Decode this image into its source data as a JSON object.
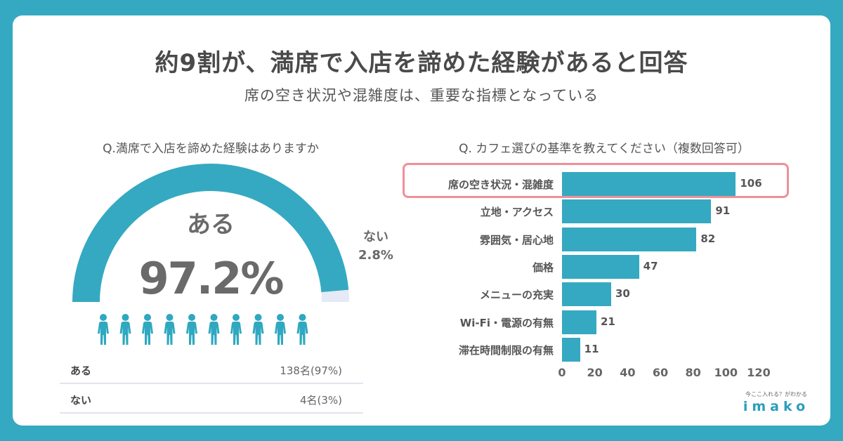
{
  "title": "約9割が、満席で入店を諦めた経験があると回答",
  "subtitle": "席の空き状況や混雑度は、重要な指標となっている",
  "logo": {
    "tagline": "今ここ入れる？がわかる",
    "name": "imako"
  },
  "colors": {
    "background": "#35a9c1",
    "bar": "#35a9c1",
    "gauge_rest": "#e6e9f6",
    "highlight": "#ef8f99",
    "people": "#2fa8c0"
  },
  "chart_data": [
    {
      "type": "gauge",
      "question": "Q.満席で入店を諦めた経験はありますか",
      "main": {
        "label": "ある",
        "value": 97.2,
        "display": "97.2%"
      },
      "rest": {
        "label": "ない",
        "value": 2.8,
        "display": "2.8%"
      },
      "people_icons": 10,
      "table": [
        {
          "label": "ある",
          "value": "138名(97%)"
        },
        {
          "label": "ない",
          "value": "4名(3%)"
        }
      ]
    },
    {
      "type": "bar",
      "orientation": "horizontal",
      "question": "Q. カフェ選びの基準を教えてください（複数回答可）",
      "categories": [
        "席の空き状況・混雑度",
        "立地・アクセス",
        "雰囲気・居心地",
        "価格",
        "メニューの充実",
        "Wi-Fi・電源の有無",
        "滞在時間制限の有無"
      ],
      "values": [
        106,
        91,
        82,
        47,
        30,
        21,
        11
      ],
      "highlighted": "席の空き状況・混雑度",
      "xlim": [
        0,
        120
      ],
      "xticks": [
        0,
        20,
        40,
        60,
        80,
        100,
        120
      ]
    }
  ]
}
